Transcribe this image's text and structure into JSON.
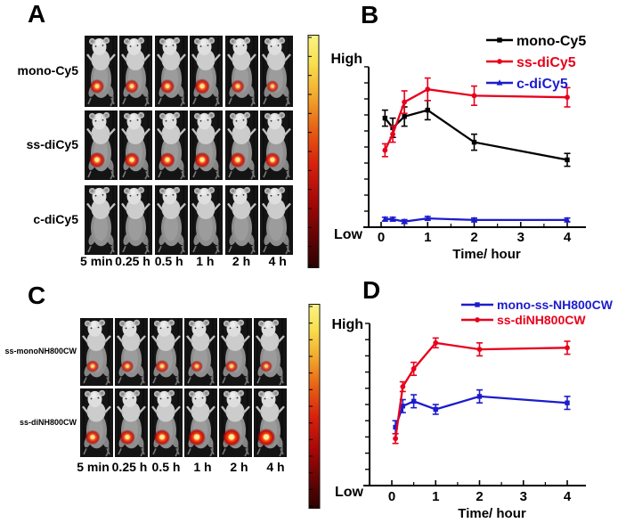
{
  "panels": {
    "a": {
      "label": "A",
      "rows": [
        {
          "label": "mono-Cy5",
          "signals": [
            0.65,
            0.6,
            0.65,
            0.75,
            0.55,
            0.45
          ]
        },
        {
          "label": "ss-diCy5",
          "signals": [
            0.8,
            0.75,
            0.75,
            0.8,
            0.78,
            0.75
          ]
        },
        {
          "label": "c-diCy5",
          "signals": [
            0,
            0,
            0,
            0,
            0,
            0
          ]
        }
      ],
      "time_labels": [
        "5 min",
        "0.25 h",
        "0.5 h",
        "1 h",
        "2 h",
        "4 h"
      ]
    },
    "b": {
      "label": "B"
    },
    "c": {
      "label": "C",
      "rows": [
        {
          "label": "ss-monoNH800CW",
          "signals": [
            0.5,
            0.5,
            0.55,
            0.45,
            0.5,
            0.45
          ]
        },
        {
          "label": "ss-diNH800CW",
          "signals": [
            0.72,
            0.78,
            0.85,
            0.95,
            1,
            1
          ]
        }
      ],
      "time_labels": [
        "5 min",
        "0.25 h",
        "0.5 h",
        "1 h",
        "2 h",
        "4 h"
      ]
    },
    "d": {
      "label": "D"
    }
  },
  "colorbar": {
    "tick_count": 13
  },
  "chart_data": [
    {
      "id": "chart-b",
      "type": "line",
      "x": [
        0.083,
        0.25,
        0.5,
        1,
        2,
        4
      ],
      "xlabel": "Time/ hour",
      "x_ticks": [
        0,
        1,
        2,
        3,
        4
      ],
      "xlim": [
        0,
        4.5
      ],
      "ylim": [
        0,
        1
      ],
      "y_axis_labels": {
        "high": "High",
        "low": "Low"
      },
      "grid": false,
      "legend_position": "top-right",
      "series": [
        {
          "name": "mono-Cy5",
          "color": "#000000",
          "marker": "square",
          "values": [
            0.68,
            0.62,
            0.69,
            0.73,
            0.53,
            0.42
          ],
          "errors": [
            0.05,
            0.06,
            0.06,
            0.06,
            0.05,
            0.04
          ]
        },
        {
          "name": "ss-diCy5",
          "color": "#e8001c",
          "marker": "circle",
          "values": [
            0.48,
            0.58,
            0.78,
            0.86,
            0.82,
            0.81
          ],
          "errors": [
            0.04,
            0.05,
            0.07,
            0.07,
            0.06,
            0.06
          ]
        },
        {
          "name": "c-diCy5",
          "color": "#1c1ccd",
          "marker": "triangle",
          "values": [
            0.05,
            0.05,
            0.035,
            0.055,
            0.045,
            0.045
          ],
          "errors": [
            0.012,
            0.012,
            0.012,
            0.012,
            0.012,
            0.012
          ]
        }
      ]
    },
    {
      "id": "chart-d",
      "type": "line",
      "x": [
        0.083,
        0.25,
        0.5,
        1,
        2,
        4
      ],
      "xlabel": "Time/ hour",
      "x_ticks": [
        0,
        1,
        2,
        3,
        4
      ],
      "xlim": [
        0,
        4.5
      ],
      "ylim": [
        0,
        1
      ],
      "y_axis_labels": {
        "high": "High",
        "low": "Low"
      },
      "grid": false,
      "legend_position": "top-right",
      "series": [
        {
          "name": "mono-ss-NH800CW",
          "color": "#1c1ccd",
          "marker": "square",
          "values": [
            0.36,
            0.49,
            0.52,
            0.47,
            0.55,
            0.51
          ],
          "errors": [
            0.04,
            0.04,
            0.04,
            0.03,
            0.04,
            0.04
          ]
        },
        {
          "name": "ss-diNH800CW",
          "color": "#e8001c",
          "marker": "circle",
          "values": [
            0.29,
            0.61,
            0.72,
            0.88,
            0.84,
            0.85
          ],
          "errors": [
            0.03,
            0.03,
            0.04,
            0.03,
            0.04,
            0.04
          ]
        }
      ]
    }
  ]
}
